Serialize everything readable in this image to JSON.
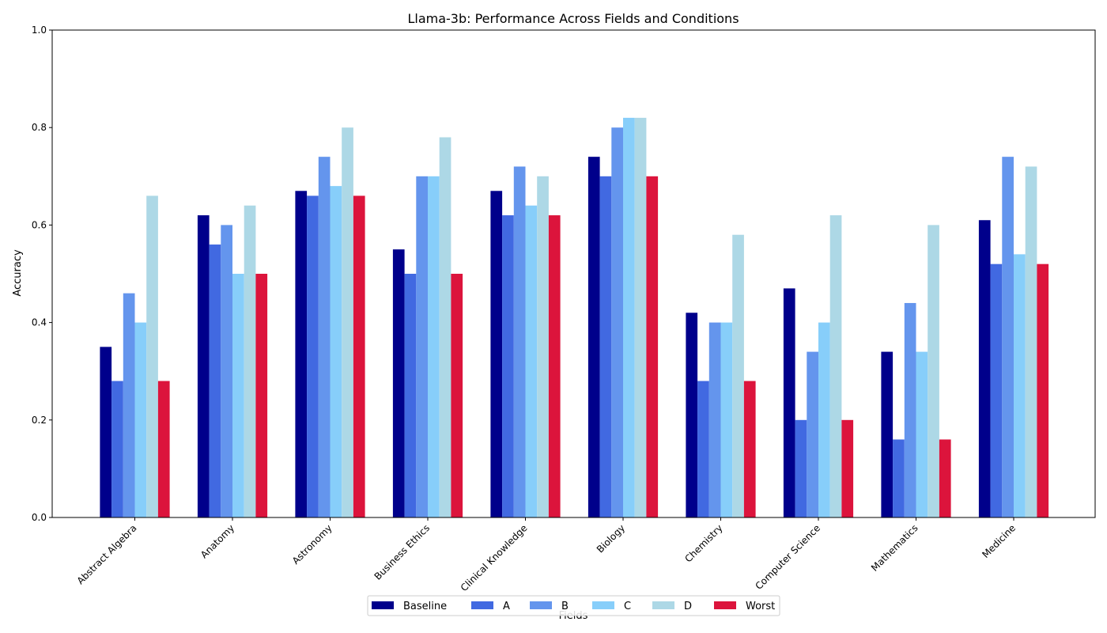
{
  "chart_data": {
    "type": "bar",
    "title": "Llama-3b: Performance Across Fields and Conditions",
    "xlabel": "Fields",
    "ylabel": "Accuracy",
    "ylim": [
      0,
      1.0
    ],
    "yticks": [
      "0.0",
      "0.2",
      "0.4",
      "0.6",
      "0.8",
      "1.0"
    ],
    "grid": false,
    "legend_position": "bottom-center",
    "categories": [
      "Abstract Algebra",
      "Anatomy",
      "Astronomy",
      "Business Ethics",
      "Clinical Knowledge",
      "Biology",
      "Chemistry",
      "Computer Science",
      "Mathematics",
      "Medicine"
    ],
    "series": [
      {
        "name": "Baseline",
        "color": "#00008b",
        "values": [
          0.35,
          0.62,
          0.67,
          0.55,
          0.67,
          0.74,
          0.42,
          0.47,
          0.34,
          0.61
        ]
      },
      {
        "name": "A",
        "color": "#4169e1",
        "values": [
          0.28,
          0.56,
          0.66,
          0.5,
          0.62,
          0.7,
          0.28,
          0.2,
          0.16,
          0.52
        ]
      },
      {
        "name": "B",
        "color": "#6495ed",
        "values": [
          0.46,
          0.6,
          0.74,
          0.7,
          0.72,
          0.8,
          0.4,
          0.34,
          0.44,
          0.74
        ]
      },
      {
        "name": "C",
        "color": "#87cefa",
        "values": [
          0.4,
          0.5,
          0.68,
          0.7,
          0.64,
          0.82,
          0.4,
          0.4,
          0.34,
          0.54
        ]
      },
      {
        "name": "D",
        "color": "#add8e6",
        "values": [
          0.66,
          0.64,
          0.8,
          0.78,
          0.7,
          0.82,
          0.58,
          0.62,
          0.6,
          0.72
        ]
      },
      {
        "name": "Worst",
        "color": "#dc143c",
        "values": [
          0.28,
          0.5,
          0.66,
          0.5,
          0.62,
          0.7,
          0.28,
          0.2,
          0.16,
          0.52
        ]
      }
    ]
  }
}
